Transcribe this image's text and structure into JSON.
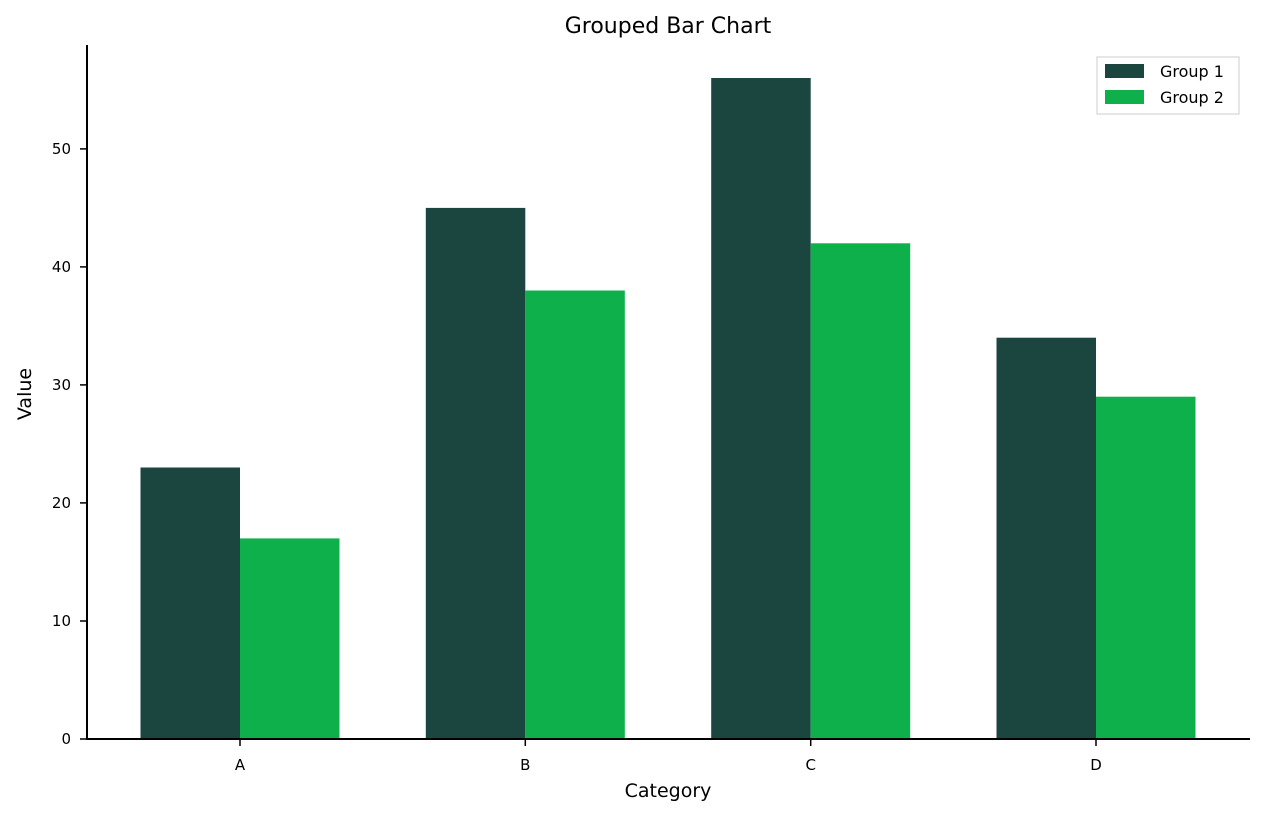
{
  "chart_data": {
    "type": "bar",
    "title": "Grouped Bar Chart",
    "xlabel": "Category",
    "ylabel": "Value",
    "categories": [
      "A",
      "B",
      "C",
      "D"
    ],
    "series": [
      {
        "name": "Group 1",
        "values": [
          23,
          45,
          56,
          34
        ],
        "color": "#1b4640"
      },
      {
        "name": "Group 2",
        "values": [
          17,
          38,
          42,
          29
        ],
        "color": "#0db04b"
      }
    ],
    "ylim": [
      0,
      58.8
    ],
    "yticks": [
      0,
      10,
      20,
      30,
      40,
      50
    ],
    "grid": false,
    "legend_position": "top-right"
  }
}
